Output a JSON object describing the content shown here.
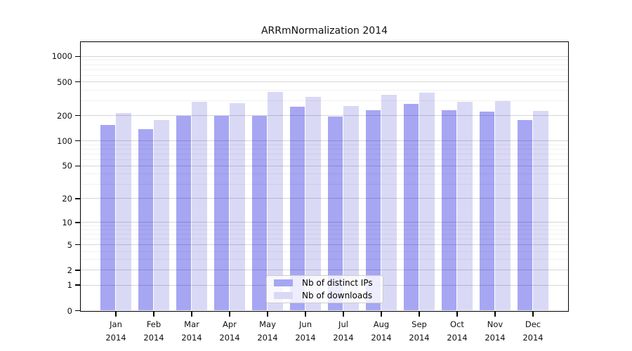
{
  "chart_data": {
    "type": "bar",
    "title": "ARRmNormalization 2014",
    "categories": [
      "Jan 2014",
      "Feb 2014",
      "Mar 2014",
      "Apr 2014",
      "May 2014",
      "Jun 2014",
      "Jul 2014",
      "Aug 2014",
      "Sep 2014",
      "Oct 2014",
      "Nov 2014",
      "Dec 2014"
    ],
    "x_months": [
      "Jan",
      "Feb",
      "Mar",
      "Apr",
      "May",
      "Jun",
      "Jul",
      "Aug",
      "Sep",
      "Oct",
      "Nov",
      "Dec"
    ],
    "x_year": "2014",
    "series": [
      {
        "name": "Nb of distinct IPs",
        "color": "#a6a6f3",
        "values": [
          152,
          137,
          196,
          195,
          195,
          253,
          192,
          228,
          273,
          228,
          222,
          174
        ]
      },
      {
        "name": "Nb of downloads",
        "color": "#d9d9f6",
        "values": [
          213,
          175,
          289,
          277,
          374,
          330,
          258,
          347,
          368,
          291,
          294,
          226
        ]
      }
    ],
    "yscale": "log1p",
    "yticks": [
      0,
      1,
      2,
      5,
      10,
      20,
      50,
      100,
      200,
      500,
      1000
    ],
    "yticks_minor": [
      3,
      4,
      6,
      7,
      8,
      9,
      30,
      40,
      60,
      70,
      80,
      90,
      300,
      400,
      600,
      700,
      800,
      900
    ],
    "ylim": [
      0,
      1100
    ],
    "xlabel": "",
    "ylabel": "",
    "grid": true,
    "legend_position": "bottom-center",
    "axis_color": "#000000",
    "background_color": "#ffffff"
  }
}
